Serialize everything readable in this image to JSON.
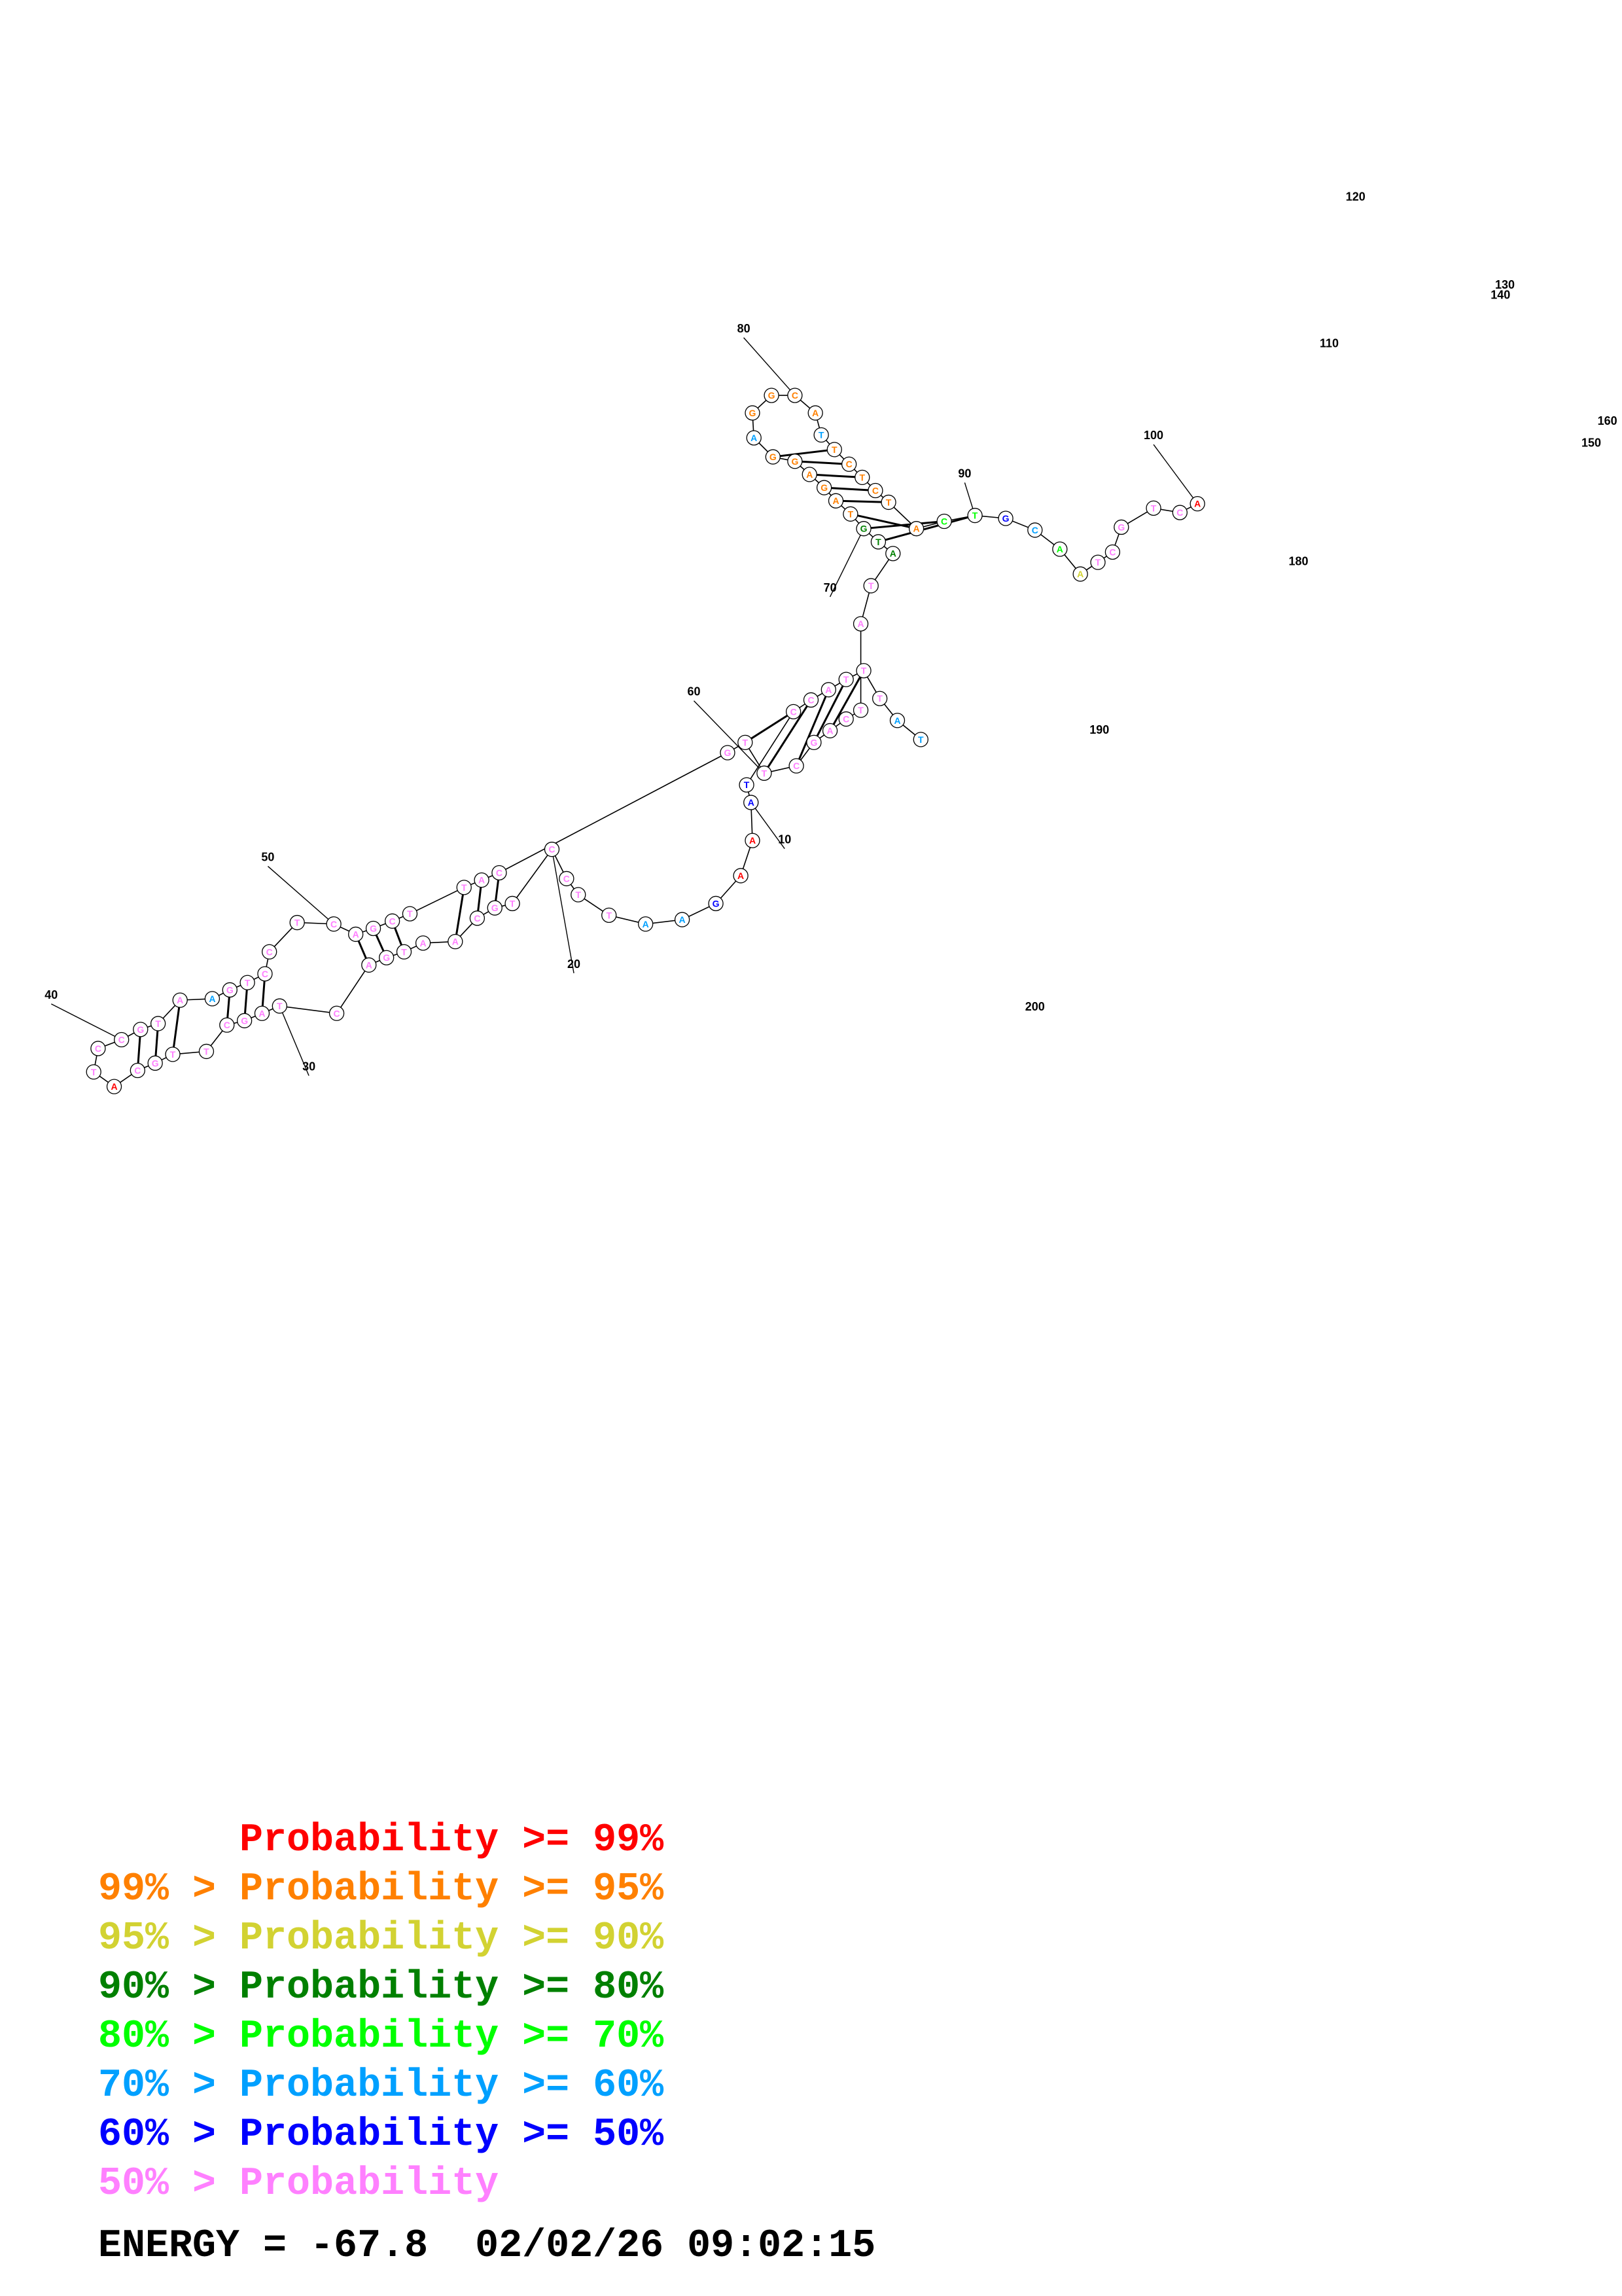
{
  "structure": {
    "nucleotides": [
      {
        "n": 1,
        "b": "T",
        "p": "60-70"
      },
      {
        "n": 2,
        "b": "A",
        "p": "60-70"
      },
      {
        "n": 3,
        "b": "T",
        "p": "<50"
      },
      {
        "n": 4,
        "b": "T",
        "p": "<50"
      },
      {
        "n": 5,
        "b": "T",
        "p": "<50"
      },
      {
        "n": 6,
        "b": "A",
        "p": "<50"
      },
      {
        "n": 7,
        "b": "C",
        "p": "<50"
      },
      {
        "n": 8,
        "b": "C",
        "p": "<50"
      },
      {
        "n": 9,
        "b": "T",
        "p": "50-60"
      },
      {
        "n": 10,
        "b": "A",
        "p": "50-60"
      },
      {
        "n": 11,
        "b": "A",
        "p": ">=99"
      },
      {
        "n": 12,
        "b": "A",
        "p": ">=99"
      },
      {
        "n": 13,
        "b": "G",
        "p": "50-60"
      },
      {
        "n": 14,
        "b": "A",
        "p": "60-70"
      },
      {
        "n": 15,
        "b": "A",
        "p": "60-70"
      },
      {
        "n": 16,
        "b": "T",
        "p": "<50"
      },
      {
        "n": 17,
        "b": "T",
        "p": "<50"
      },
      {
        "n": 18,
        "b": "C",
        "p": "<50"
      },
      {
        "n": 19,
        "b": "C",
        "p": "<50"
      },
      {
        "n": 20,
        "b": "T",
        "p": "<50"
      },
      {
        "n": 21,
        "b": "G",
        "p": "<50"
      },
      {
        "n": 22,
        "b": "C",
        "p": "<50"
      },
      {
        "n": 23,
        "b": "A",
        "p": "<50"
      },
      {
        "n": 24,
        "b": "A",
        "p": "<50"
      },
      {
        "n": 25,
        "b": "T",
        "p": "<50"
      },
      {
        "n": 26,
        "b": "G",
        "p": "<50"
      },
      {
        "n": 27,
        "b": "A",
        "p": "<50"
      },
      {
        "n": 28,
        "b": "C",
        "p": "<50"
      },
      {
        "n": 29,
        "b": "T",
        "p": "<50"
      },
      {
        "n": 30,
        "b": "A",
        "p": "<50"
      },
      {
        "n": 31,
        "b": "G",
        "p": "<50"
      },
      {
        "n": 32,
        "b": "C",
        "p": "<50"
      },
      {
        "n": 33,
        "b": "T",
        "p": "<50"
      },
      {
        "n": 34,
        "b": "T",
        "p": "<50"
      },
      {
        "n": 35,
        "b": "G",
        "p": "<50"
      },
      {
        "n": 36,
        "b": "C",
        "p": "<50"
      },
      {
        "n": 37,
        "b": "A",
        "p": ">=99"
      },
      {
        "n": 38,
        "b": "T",
        "p": "<50"
      },
      {
        "n": 39,
        "b": "C",
        "p": "<50"
      },
      {
        "n": 40,
        "b": "C",
        "p": "<50"
      },
      {
        "n": 41,
        "b": "G",
        "p": "<50"
      },
      {
        "n": 42,
        "b": "T",
        "p": "<50"
      },
      {
        "n": 43,
        "b": "A",
        "p": "<50"
      },
      {
        "n": 44,
        "b": "A",
        "p": "60-70"
      },
      {
        "n": 45,
        "b": "G",
        "p": "<50"
      },
      {
        "n": 46,
        "b": "T",
        "p": "<50"
      },
      {
        "n": 47,
        "b": "C",
        "p": "<50"
      },
      {
        "n": 48,
        "b": "C",
        "p": "<50"
      },
      {
        "n": 49,
        "b": "T",
        "p": "<50"
      },
      {
        "n": 50,
        "b": "C",
        "p": "<50"
      },
      {
        "n": 51,
        "b": "A",
        "p": "<50"
      },
      {
        "n": 52,
        "b": "G",
        "p": "<50"
      },
      {
        "n": 53,
        "b": "C",
        "p": "<50"
      },
      {
        "n": 54,
        "b": "T",
        "p": "<50"
      },
      {
        "n": 55,
        "b": "T",
        "p": "<50"
      },
      {
        "n": 56,
        "b": "A",
        "p": "<50"
      },
      {
        "n": 57,
        "b": "C",
        "p": "<50"
      },
      {
        "n": 58,
        "b": "G",
        "p": "<50"
      },
      {
        "n": 59,
        "b": "T",
        "p": "<50"
      },
      {
        "n": 60,
        "b": "T",
        "p": "<50"
      },
      {
        "n": 61,
        "b": "C",
        "p": "<50"
      },
      {
        "n": 62,
        "b": "G",
        "p": "<50"
      },
      {
        "n": 63,
        "b": "A",
        "p": "<50"
      },
      {
        "n": 64,
        "b": "C",
        "p": "<50"
      },
      {
        "n": 65,
        "b": "T",
        "p": "<50"
      },
      {
        "n": 66,
        "b": "A",
        "p": "<50"
      },
      {
        "n": 67,
        "b": "T",
        "p": "<50"
      },
      {
        "n": 68,
        "b": "A",
        "p": "80-90"
      },
      {
        "n": 69,
        "b": "T",
        "p": "80-90"
      },
      {
        "n": 70,
        "b": "G",
        "p": "80-90"
      },
      {
        "n": 71,
        "b": "T",
        "p": "95-99"
      },
      {
        "n": 72,
        "b": "A",
        "p": "95-99"
      },
      {
        "n": 73,
        "b": "G",
        "p": "95-99"
      },
      {
        "n": 74,
        "b": "A",
        "p": "95-99"
      },
      {
        "n": 75,
        "b": "G",
        "p": "95-99"
      },
      {
        "n": 76,
        "b": "G",
        "p": "95-99"
      },
      {
        "n": 77,
        "b": "A",
        "p": "60-70"
      },
      {
        "n": 78,
        "b": "G",
        "p": "95-99"
      },
      {
        "n": 79,
        "b": "G",
        "p": "95-99"
      },
      {
        "n": 80,
        "b": "C",
        "p": "95-99"
      },
      {
        "n": 81,
        "b": "A",
        "p": "95-99"
      },
      {
        "n": 82,
        "b": "T",
        "p": "60-70"
      },
      {
        "n": 83,
        "b": "T",
        "p": "95-99"
      },
      {
        "n": 84,
        "b": "C",
        "p": "95-99"
      },
      {
        "n": 85,
        "b": "T",
        "p": "95-99"
      },
      {
        "n": 86,
        "b": "C",
        "p": "95-99"
      },
      {
        "n": 87,
        "b": "T",
        "p": "95-99"
      },
      {
        "n": 88,
        "b": "A",
        "p": "95-99"
      },
      {
        "n": 89,
        "b": "C",
        "p": "70-80"
      },
      {
        "n": 90,
        "b": "T",
        "p": "70-80"
      },
      {
        "n": 91,
        "b": "G",
        "p": "50-60"
      },
      {
        "n": 92,
        "b": "C",
        "p": "60-70"
      },
      {
        "n": 93,
        "b": "A",
        "p": "70-80"
      },
      {
        "n": 94,
        "b": "A",
        "p": "90-95"
      },
      {
        "n": 95,
        "b": "T",
        "p": "<50"
      },
      {
        "n": 96,
        "b": "C",
        "p": "<50"
      },
      {
        "n": 97,
        "b": "G",
        "p": "<50"
      },
      {
        "n": 98,
        "b": "T",
        "p": "<50"
      },
      {
        "n": 99,
        "b": "C",
        "p": "<50"
      },
      {
        "n": 100,
        "b": "A",
        "p": ">=99"
      }
    ],
    "position_labels": [
      "10",
      "20",
      "30",
      "40",
      "50",
      "60",
      "70",
      "80",
      "90",
      "100",
      "110",
      "120",
      "130",
      "140",
      "150",
      "160",
      "180",
      "190",
      "200"
    ]
  },
  "legend": {
    "lines": [
      {
        "text": "      Probability >= 99%",
        "color": "#ff0000"
      },
      {
        "text": "99% > Probability >= 95%",
        "color": "#ff8000"
      },
      {
        "text": "95% > Probability >= 90%",
        "color": "#d2d232"
      },
      {
        "text": "90% > Probability >= 80%",
        "color": "#008000"
      },
      {
        "text": "80% > Probability >= 70%",
        "color": "#00ff00"
      },
      {
        "text": "70% > Probability >= 60%",
        "color": "#00a0ff"
      },
      {
        "text": "60% > Probability >= 50%",
        "color": "#0000ff"
      },
      {
        "text": "50% > Probability",
        "color": "#ff80ff"
      }
    ]
  },
  "footer": {
    "energy_text": "ENERGY = -67.8  02/02/26 09:02:15"
  },
  "colors": {
    ">=99": "#ff0000",
    "95-99": "#ff8000",
    "90-95": "#d2d232",
    "80-90": "#008000",
    "70-80": "#00ff00",
    "60-70": "#00a0ff",
    "50-60": "#0000ff",
    "<50": "#ff80ff"
  }
}
